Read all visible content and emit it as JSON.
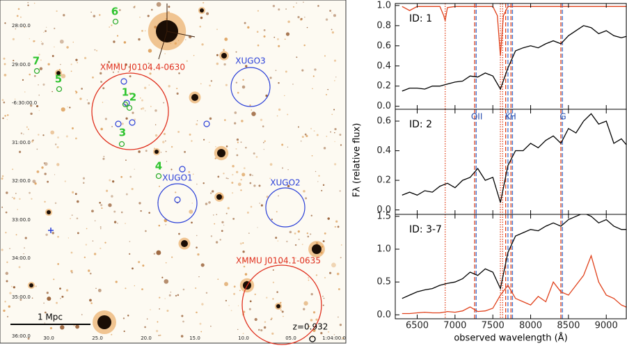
{
  "image_panel": {
    "source_labels": [
      "1",
      "2",
      "3",
      "4",
      "5",
      "6",
      "7"
    ],
    "cluster_labels": [
      "XMMU J0104.4-0630",
      "XMMU J0104.1-0635"
    ],
    "group_labels": [
      "XUGO1",
      "XUGO2",
      "XUGO3"
    ],
    "dec_labels": [
      "28:00.0",
      "29:00.0",
      "-6:30:00.0",
      "31:00.0",
      "32:00.0",
      "33:00.0",
      "34:00.0",
      "35:00.0",
      "36:00.0"
    ],
    "ra_labels": [
      "30.0",
      "25.0",
      "20.0",
      "15.0",
      "10.0",
      "05.0",
      "1:04:00.0"
    ],
    "scale_bar": "1 Mpc",
    "redshift": "z=0.932"
  },
  "reference_lines": [
    {
      "x": 6870,
      "color": "#e0401a",
      "style": "dotted"
    },
    {
      "x": 7600,
      "color": "#e0401a",
      "style": "dotted"
    },
    {
      "x": 7630,
      "color": "#e0401a",
      "style": "dotted"
    },
    {
      "x": 7260,
      "color": "#e0401a",
      "style": "dashed",
      "label": "OII"
    },
    {
      "x": 7280,
      "color": "#3a6fd0",
      "style": "dashed"
    },
    {
      "x": 7670,
      "color": "#e0401a",
      "style": "dashed",
      "label": "K"
    },
    {
      "x": 7700,
      "color": "#3a6fd0",
      "style": "dashed"
    },
    {
      "x": 7740,
      "color": "#e0401a",
      "style": "dashed",
      "label": "H"
    },
    {
      "x": 7760,
      "color": "#3a6fd0",
      "style": "dashed"
    },
    {
      "x": 8400,
      "color": "#e0401a",
      "style": "dashed",
      "label": "G"
    },
    {
      "x": 8420,
      "color": "#3a6fd0",
      "style": "dashed"
    }
  ],
  "chart_data": [
    {
      "type": "line",
      "annotation": "ID: 1",
      "x": [
        6300,
        6400,
        6500,
        6600,
        6700,
        6800,
        6900,
        7000,
        7100,
        7200,
        7300,
        7400,
        7500,
        7600,
        7700,
        7800,
        7900,
        8000,
        8100,
        8200,
        8300,
        8400,
        8500,
        8600,
        8700,
        8800,
        8900,
        9000,
        9100,
        9200,
        9300
      ],
      "series": [
        {
          "color": "#000000",
          "values": [
            0.15,
            0.18,
            0.18,
            0.17,
            0.2,
            0.2,
            0.22,
            0.24,
            0.25,
            0.3,
            0.29,
            0.33,
            0.3,
            0.17,
            0.38,
            0.55,
            0.58,
            0.6,
            0.58,
            0.62,
            0.65,
            0.62,
            0.7,
            0.75,
            0.8,
            0.78,
            0.72,
            0.75,
            0.7,
            0.68,
            0.7
          ]
        },
        {
          "color": "#e0401a",
          "x": [
            6300,
            6400,
            6500,
            6800,
            6850,
            6870,
            6900,
            7000,
            7500,
            7560,
            7600,
            7640,
            7700,
            8000,
            9300
          ],
          "values": [
            0.99,
            0.95,
            0.99,
            0.99,
            0.9,
            0.85,
            0.98,
            0.99,
            0.99,
            0.9,
            0.5,
            0.9,
            0.99,
            0.99,
            0.99
          ]
        }
      ],
      "xlim": [
        6210,
        9265
      ],
      "xticks": [
        6500,
        7000,
        7500,
        8000,
        8500,
        9000
      ],
      "ylim": [
        -0.03,
        1.02
      ],
      "yticks": [
        {
          "value": 0,
          "label": "0.0"
        },
        0.2,
        0.4,
        0.6,
        0.8,
        {
          "value": 1,
          "label": "1.0"
        }
      ]
    },
    {
      "type": "line",
      "annotation": "ID: 2",
      "y_label": "Fλ (relative flux)",
      "x": [
        6300,
        6400,
        6500,
        6600,
        6700,
        6800,
        6900,
        7000,
        7100,
        7200,
        7300,
        7400,
        7500,
        7600,
        7700,
        7800,
        7900,
        8000,
        8100,
        8200,
        8300,
        8400,
        8500,
        8600,
        8700,
        8800,
        8900,
        9000,
        9100,
        9200,
        9300
      ],
      "series": [
        {
          "color": "#000000",
          "values": [
            0.1,
            0.12,
            0.1,
            0.13,
            0.12,
            0.16,
            0.18,
            0.15,
            0.2,
            0.22,
            0.28,
            0.2,
            0.22,
            0.05,
            0.3,
            0.4,
            0.4,
            0.45,
            0.42,
            0.47,
            0.5,
            0.45,
            0.55,
            0.52,
            0.6,
            0.65,
            0.58,
            0.6,
            0.45,
            0.48,
            0.42
          ]
        }
      ],
      "xlim": [
        6210,
        9265
      ],
      "xticks": [
        6500,
        7000,
        7500,
        8000,
        8500,
        9000
      ],
      "ylim": [
        -0.03,
        0.68
      ],
      "yticks": [
        {
          "value": 0,
          "label": "0.0"
        },
        0.2,
        0.4,
        0.6
      ]
    },
    {
      "type": "line",
      "annotation": "ID: 3-7",
      "x_label": "observed wavelength (Å)",
      "x": [
        6300,
        6400,
        6500,
        6600,
        6700,
        6800,
        6900,
        7000,
        7100,
        7200,
        7300,
        7400,
        7500,
        7600,
        7700,
        7800,
        7900,
        8000,
        8100,
        8200,
        8300,
        8400,
        8500,
        8600,
        8700,
        8800,
        8900,
        9000,
        9100,
        9200,
        9300
      ],
      "series": [
        {
          "color": "#000000",
          "values": [
            0.25,
            0.3,
            0.35,
            0.38,
            0.4,
            0.45,
            0.48,
            0.5,
            0.55,
            0.65,
            0.6,
            0.7,
            0.65,
            0.4,
            0.95,
            1.2,
            1.25,
            1.3,
            1.28,
            1.35,
            1.4,
            1.35,
            1.45,
            1.5,
            1.55,
            1.5,
            1.4,
            1.45,
            1.35,
            1.3,
            1.3
          ]
        },
        {
          "color": "#e0401a",
          "values": [
            0.02,
            0.02,
            0.03,
            0.04,
            0.03,
            0.03,
            0.05,
            0.04,
            0.06,
            0.12,
            0.05,
            0.06,
            0.1,
            0.3,
            0.45,
            0.25,
            0.2,
            0.15,
            0.28,
            0.2,
            0.5,
            0.35,
            0.3,
            0.45,
            0.6,
            0.9,
            0.5,
            0.3,
            0.25,
            0.15,
            0.1
          ]
        }
      ],
      "xlim": [
        6210,
        9265
      ],
      "xticks": [
        6500,
        7000,
        7500,
        8000,
        8500,
        9000
      ],
      "ylim": [
        -0.06,
        1.53
      ],
      "yticks": [
        {
          "value": 0,
          "label": "0.0"
        },
        0.5,
        {
          "value": 1,
          "label": "1.0"
        },
        1.5
      ]
    }
  ]
}
